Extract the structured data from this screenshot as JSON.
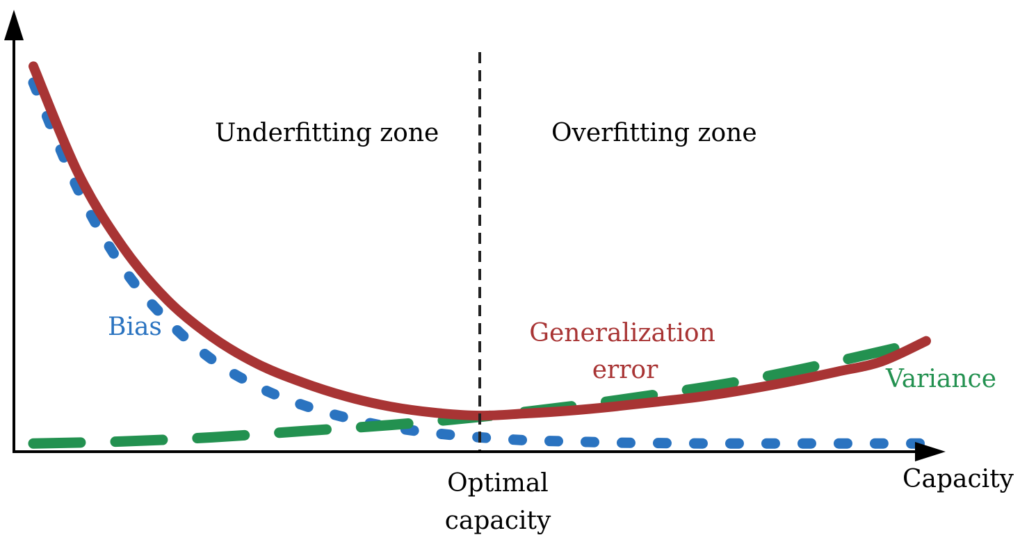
{
  "chart_data": {
    "type": "line",
    "title": "",
    "xlabel": "Capacity",
    "ylabel": "",
    "grid": false,
    "xlim": [
      0,
      1.0
    ],
    "ylim": [
      0,
      1.0
    ],
    "series": [
      {
        "name": "Bias",
        "style": "dotted",
        "color": "#2a73c0",
        "x": [
          0.0,
          0.05,
          0.1,
          0.15,
          0.2,
          0.25,
          0.3,
          0.35,
          0.4,
          0.45,
          0.5,
          0.55,
          0.6,
          0.65,
          0.7,
          0.75,
          0.8,
          0.85,
          0.9,
          0.95,
          1.0
        ],
        "y": [
          0.9,
          0.64,
          0.45,
          0.32,
          0.225,
          0.16,
          0.115,
          0.083,
          0.06,
          0.045,
          0.035,
          0.028,
          0.025,
          0.022,
          0.021,
          0.02,
          0.02,
          0.02,
          0.02,
          0.02,
          0.02
        ]
      },
      {
        "name": "Variance",
        "style": "dashed",
        "color": "#239150",
        "x": [
          0.0,
          0.1,
          0.2,
          0.3,
          0.4,
          0.5,
          0.6,
          0.7,
          0.8,
          0.9,
          1.0
        ],
        "y": [
          0.02,
          0.025,
          0.035,
          0.05,
          0.065,
          0.085,
          0.11,
          0.14,
          0.175,
          0.22,
          0.27
        ]
      },
      {
        "name": "Generalization error",
        "style": "solid",
        "color": "#a83434",
        "x": [
          0.0,
          0.05,
          0.1,
          0.15,
          0.2,
          0.25,
          0.3,
          0.35,
          0.4,
          0.45,
          0.5,
          0.55,
          0.6,
          0.65,
          0.7,
          0.75,
          0.8,
          0.85,
          0.9,
          0.95,
          1.0
        ],
        "y": [
          0.94,
          0.68,
          0.5,
          0.37,
          0.28,
          0.215,
          0.17,
          0.135,
          0.11,
          0.095,
          0.088,
          0.093,
          0.1,
          0.11,
          0.122,
          0.135,
          0.152,
          0.172,
          0.195,
          0.22,
          0.27
        ]
      }
    ],
    "optimal_capacity_x": 0.5,
    "annotations": {
      "underfitting": "Underfitting zone",
      "overfitting": "Overfitting zone",
      "optimal_line1": "Optimal",
      "optimal_line2": "capacity",
      "bias": "Bias",
      "generalization_line1": "Generalization",
      "generalization_line2": "error",
      "variance": "Variance"
    }
  }
}
